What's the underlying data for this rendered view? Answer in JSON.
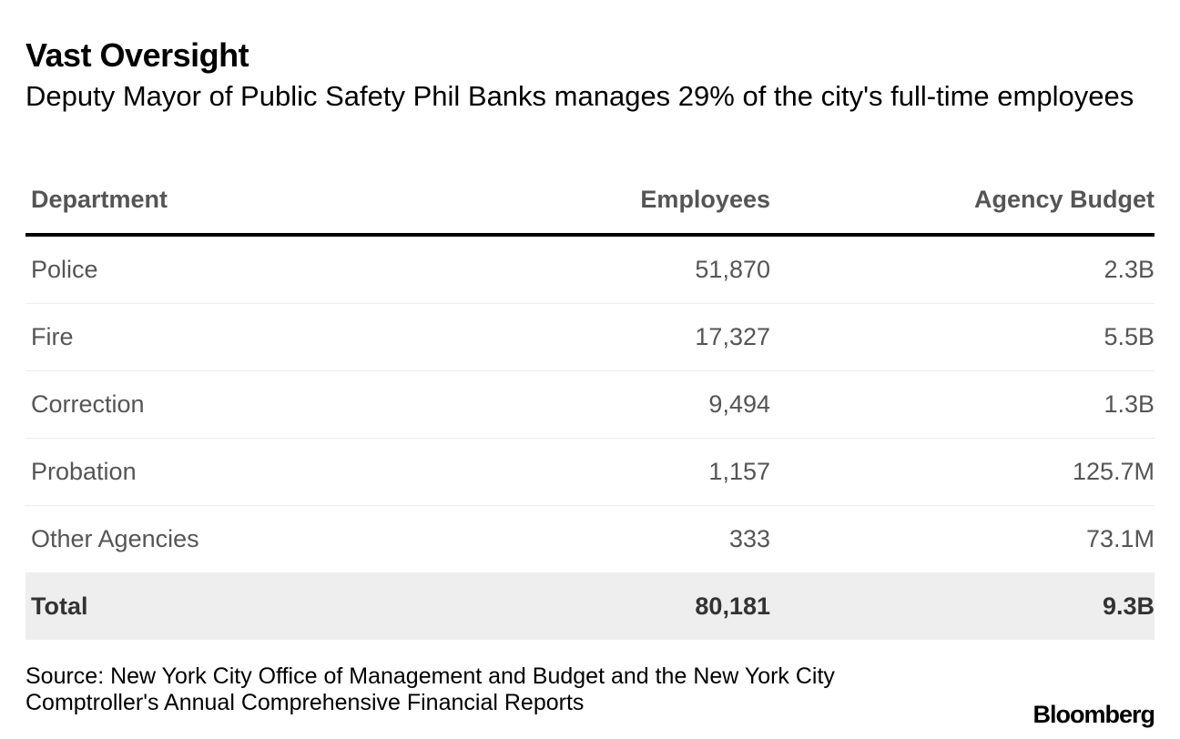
{
  "title": "Vast Oversight",
  "subtitle": "Deputy Mayor of Public Safety Phil Banks manages 29% of the city's full-time employees",
  "table": {
    "headers": {
      "department": "Department",
      "employees": "Employees",
      "budget": "Agency Budget"
    },
    "rows": [
      {
        "department": "Police",
        "employees": "51,870",
        "budget": "2.3B"
      },
      {
        "department": "Fire",
        "employees": "17,327",
        "budget": "5.5B"
      },
      {
        "department": "Correction",
        "employees": "9,494",
        "budget": "1.3B"
      },
      {
        "department": "Probation",
        "employees": "1,157",
        "budget": "125.7M"
      },
      {
        "department": "Other Agencies",
        "employees": "333",
        "budget": "73.1M"
      }
    ],
    "total": {
      "department": "Total",
      "employees": "80,181",
      "budget": "9.3B"
    }
  },
  "chart_data": {
    "type": "table",
    "title": "Vast Oversight",
    "subtitle": "Deputy Mayor of Public Safety Phil Banks manages 29% of the city's full-time employees",
    "columns": [
      "Department",
      "Employees",
      "Agency Budget"
    ],
    "rows": [
      [
        "Police",
        51870,
        "2.3B"
      ],
      [
        "Fire",
        17327,
        "5.5B"
      ],
      [
        "Correction",
        9494,
        "1.3B"
      ],
      [
        "Probation",
        1157,
        "125.7M"
      ],
      [
        "Other Agencies",
        333,
        "73.1M"
      ]
    ],
    "total": [
      "Total",
      80181,
      "9.3B"
    ]
  },
  "source": "Source: New York City Office of Management and Budget and the New York City Comptroller's Annual Comprehensive Financial Reports",
  "logo": "Bloomberg"
}
